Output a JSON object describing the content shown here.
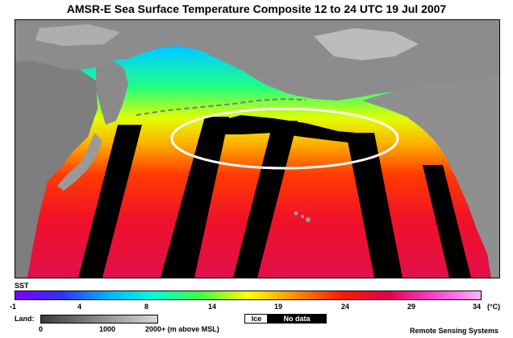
{
  "title": "AMSR-E Sea Surface Temperature Composite  12 to 24 UTC  19 Jul 2007",
  "sst_legend": {
    "label": "SST",
    "ticks": [
      "-1",
      "4",
      "8",
      "14",
      "19",
      "24",
      "29",
      "34"
    ],
    "unit": "(°C)",
    "colors": [
      "#7a00ff",
      "#3030ff",
      "#00b4ff",
      "#00ffd0",
      "#40ff40",
      "#ffff00",
      "#ff9000",
      "#ff1a00",
      "#e0004a",
      "#ff40d0",
      "#ffb0ff"
    ]
  },
  "land_legend": {
    "label": "Land:",
    "ticks": [
      "0",
      "1000",
      "2000+ (m above MSL)"
    ]
  },
  "ice_label": "Ice",
  "no_data_label": "No data",
  "credit": "Remote Sensing Systems",
  "colors": {
    "highlight_ellipse": "#ffffff",
    "land": "#8c8c8c",
    "no_data": "#000000"
  }
}
